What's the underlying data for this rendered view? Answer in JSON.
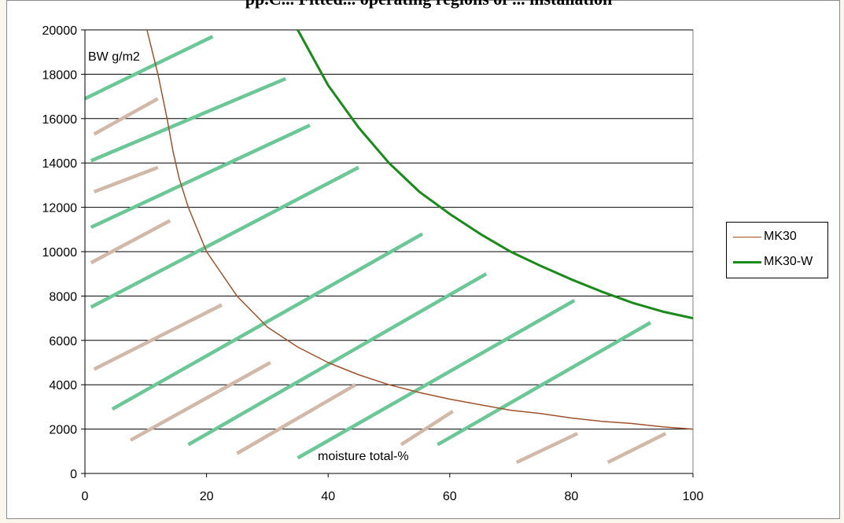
{
  "chart_data": {
    "type": "line",
    "title": "pp.C... Fitted... operating regions of ... installation",
    "ylabel": "BW g/m2",
    "xlabel": "moisture total-%",
    "xlim": [
      0,
      100
    ],
    "ylim": [
      0,
      20000
    ],
    "x_ticks": [
      0,
      20,
      40,
      60,
      80,
      100
    ],
    "y_ticks": [
      0,
      2000,
      4000,
      6000,
      8000,
      10000,
      12000,
      14000,
      16000,
      18000,
      20000
    ],
    "grid": "horizontal",
    "legend_position": "right",
    "series": [
      {
        "name": "MK30",
        "color": "#a0522d",
        "points": [
          [
            10.2,
            20000
          ],
          [
            12,
            18000
          ],
          [
            13.5,
            16000
          ],
          [
            14.5,
            14500
          ],
          [
            15.5,
            13300
          ],
          [
            17,
            12000
          ],
          [
            20,
            10000
          ],
          [
            25,
            8000
          ],
          [
            30,
            6600
          ],
          [
            35,
            5700
          ],
          [
            40,
            5000
          ],
          [
            45,
            4450
          ],
          [
            50,
            4000
          ],
          [
            55,
            3650
          ],
          [
            60,
            3350
          ],
          [
            65,
            3100
          ],
          [
            70,
            2850
          ],
          [
            75,
            2700
          ],
          [
            80,
            2500
          ],
          [
            85,
            2350
          ],
          [
            90,
            2250
          ],
          [
            95,
            2100
          ],
          [
            100,
            2000
          ]
        ]
      },
      {
        "name": "MK30-W",
        "color": "#1a8a1a",
        "points": [
          [
            35,
            20000
          ],
          [
            40,
            17500
          ],
          [
            45,
            15600
          ],
          [
            50,
            14000
          ],
          [
            55,
            12700
          ],
          [
            60,
            11700
          ],
          [
            65,
            10800
          ],
          [
            70,
            10000
          ],
          [
            75,
            9350
          ],
          [
            80,
            8750
          ],
          [
            85,
            8200
          ],
          [
            90,
            7700
          ],
          [
            95,
            7300
          ],
          [
            100,
            7000
          ]
        ]
      }
    ],
    "hatch_colors": {
      "green": "#6cc796",
      "tan": "#d2b8a8"
    }
  }
}
